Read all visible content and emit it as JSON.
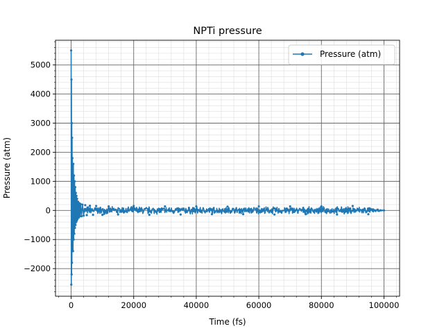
{
  "chart_data": {
    "type": "line",
    "title": "NPTi pressure",
    "xlabel": "Time (fs)",
    "ylabel": "Pressure (atm)",
    "xlim": [
      -5000,
      105000
    ],
    "ylim": [
      -2950,
      5850
    ],
    "x_ticks": [
      0,
      20000,
      40000,
      60000,
      80000,
      100000
    ],
    "x_tick_labels": [
      "0",
      "20000",
      "40000",
      "60000",
      "80000",
      "100000"
    ],
    "y_ticks": [
      -2000,
      -1000,
      0,
      1000,
      2000,
      3000,
      4000,
      5000
    ],
    "y_tick_labels": [
      "−2000",
      "−1000",
      "0",
      "1000",
      "2000",
      "3000",
      "4000",
      "5000"
    ],
    "grid": "major and minor",
    "legend_placement": "top-right",
    "series": [
      {
        "name": "Pressure (atm)",
        "color": "#1f77b4",
        "marker": "dot",
        "x": [
          0,
          50,
          100,
          150,
          200,
          250,
          300,
          350,
          400,
          450,
          500,
          600,
          700,
          800,
          900,
          1000,
          1100,
          1200,
          1300,
          1400,
          1500,
          1600,
          1700,
          1800,
          1900,
          2000,
          2200,
          2400,
          2600,
          2800,
          3000,
          3300,
          3600,
          4000,
          4500,
          5000,
          6000,
          7000,
          8000,
          10000,
          12000,
          15000,
          20000,
          25000,
          30000,
          35000,
          40000,
          45000,
          50000,
          55000,
          60000,
          65000,
          70000,
          75000,
          80000,
          85000,
          90000,
          95000,
          100000
        ],
        "y": [
          5500,
          -2550,
          4500,
          -2200,
          3000,
          -1800,
          2500,
          -1200,
          1800,
          -900,
          1500,
          -1400,
          1600,
          -1000,
          1200,
          -800,
          1000,
          -600,
          800,
          -500,
          600,
          -400,
          500,
          -350,
          400,
          -300,
          300,
          -250,
          250,
          -200,
          220,
          -200,
          200,
          -180,
          180,
          -160,
          160,
          -150,
          150,
          -150,
          140,
          -140,
          150,
          -150,
          140,
          -140,
          140,
          -130,
          130,
          -130,
          140,
          -140,
          140,
          -130,
          140,
          -140,
          150,
          -130,
          0
        ]
      }
    ]
  }
}
